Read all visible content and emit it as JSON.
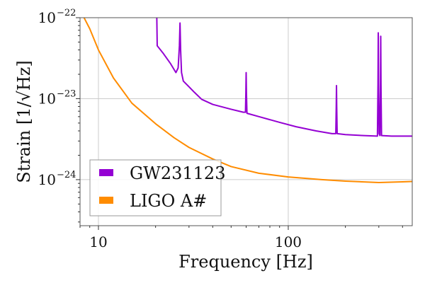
{
  "chart_data": {
    "type": "line",
    "xlabel": "Frequency [Hz]",
    "ylabel": "Strain [1/√Hz]",
    "x_scale": "log",
    "y_scale": "log",
    "xlim": [
      8,
      450
    ],
    "ylim": [
      2.7e-25,
      1e-22
    ],
    "grid": true,
    "legend_position": "lower-left",
    "x_ticks": [
      {
        "value": 10,
        "label": "10"
      },
      {
        "value": 100,
        "label": "100"
      }
    ],
    "y_ticks": [
      {
        "value": 1e-24,
        "base": "10",
        "exp": "−24"
      },
      {
        "value": 1e-23,
        "base": "10",
        "exp": "−23"
      },
      {
        "value": 1e-22,
        "base": "10",
        "exp": "−22"
      }
    ],
    "series": [
      {
        "name": "GW231123",
        "color": "#9400d3",
        "points": [
          [
            20.3,
            1e-22
          ],
          [
            20.4,
            4.5e-23
          ],
          [
            22,
            3.6e-23
          ],
          [
            24,
            2.7e-23
          ],
          [
            25.6,
            2.1e-23
          ],
          [
            26.3,
            2.4e-23
          ],
          [
            26.7,
            4.5e-23
          ],
          [
            26.9,
            8.6e-23
          ],
          [
            27.1,
            4e-23
          ],
          [
            27.4,
            2.1e-23
          ],
          [
            28,
            1.65e-23
          ],
          [
            30,
            1.4e-23
          ],
          [
            32,
            1.2e-23
          ],
          [
            35,
            9.8e-24
          ],
          [
            40,
            8.5e-24
          ],
          [
            50,
            7.4e-24
          ],
          [
            58,
            6.8e-24
          ],
          [
            59.5,
            6.8e-24
          ],
          [
            59.8,
            1.2e-23
          ],
          [
            60,
            2.1e-23
          ],
          [
            60.2,
            1.2e-23
          ],
          [
            60.6,
            6.6e-24
          ],
          [
            70,
            6e-24
          ],
          [
            90,
            5.1e-24
          ],
          [
            110,
            4.5e-24
          ],
          [
            140,
            4e-24
          ],
          [
            170,
            3.7e-24
          ],
          [
            178,
            3.7e-24
          ],
          [
            179,
            8e-24
          ],
          [
            179.5,
            1.45e-23
          ],
          [
            180,
            8e-24
          ],
          [
            181,
            3.7e-24
          ],
          [
            200,
            3.6e-24
          ],
          [
            250,
            3.5e-24
          ],
          [
            295,
            3.45e-24
          ],
          [
            297,
            1.5e-23
          ],
          [
            298,
            6.5e-23
          ],
          [
            299,
            1.5e-23
          ],
          [
            301,
            3.7e-24
          ],
          [
            304,
            3.5e-24
          ],
          [
            306,
            1.5e-23
          ],
          [
            307,
            5.9e-23
          ],
          [
            308,
            1.5e-23
          ],
          [
            310,
            3.5e-24
          ],
          [
            350,
            3.45e-24
          ],
          [
            400,
            3.45e-24
          ],
          [
            450,
            3.45e-24
          ]
        ]
      },
      {
        "name": "LIGO A#",
        "color": "#ff8c00",
        "points": [
          [
            8.4,
            1e-22
          ],
          [
            9,
            7.3e-23
          ],
          [
            10,
            4e-23
          ],
          [
            12,
            1.8e-23
          ],
          [
            15,
            8.8e-24
          ],
          [
            20,
            4.9e-24
          ],
          [
            25,
            3.3e-24
          ],
          [
            30,
            2.5e-24
          ],
          [
            40,
            1.8e-24
          ],
          [
            50,
            1.45e-24
          ],
          [
            70,
            1.2e-24
          ],
          [
            100,
            1.08e-24
          ],
          [
            150,
            1e-24
          ],
          [
            200,
            9.6e-25
          ],
          [
            300,
            9.2e-25
          ],
          [
            400,
            9.4e-25
          ],
          [
            450,
            9.5e-25
          ]
        ]
      }
    ]
  }
}
